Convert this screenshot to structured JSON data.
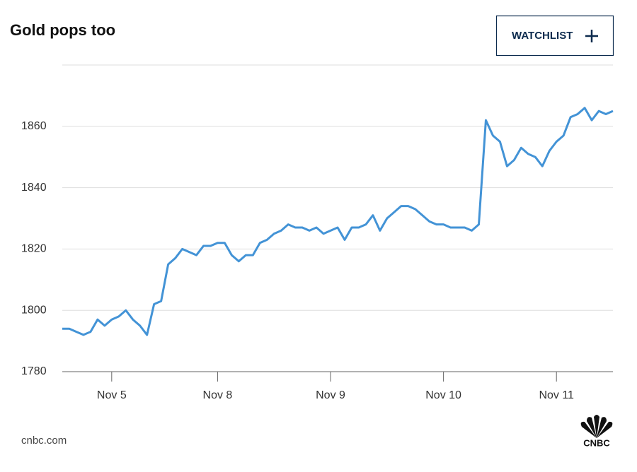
{
  "chart_data": {
    "type": "line",
    "title": "Gold pops too",
    "button": "WATCHLIST",
    "source": "cnbc.com",
    "logo": "CNBC",
    "categories": [
      null,
      null,
      null,
      null,
      null,
      null,
      null,
      "Nov 5",
      null,
      null,
      null,
      null,
      null,
      null,
      null,
      null,
      null,
      null,
      null,
      null,
      null,
      null,
      "Nov 8",
      null,
      null,
      null,
      null,
      null,
      null,
      null,
      null,
      null,
      null,
      null,
      null,
      null,
      null,
      null,
      "Nov 9",
      null,
      null,
      null,
      null,
      null,
      null,
      null,
      null,
      null,
      null,
      null,
      null,
      null,
      null,
      null,
      "Nov 10",
      null,
      null,
      null,
      null,
      null,
      null,
      null,
      null,
      null,
      null,
      null,
      null,
      null,
      null,
      null,
      "Nov 11",
      null,
      null,
      null,
      null,
      null,
      null,
      null,
      null
    ],
    "series": [
      {
        "color": "#4393d6",
        "values": [
          1794,
          1794,
          1793,
          1792,
          1793,
          1797,
          1795,
          1797,
          1798,
          1800,
          1797,
          1795,
          1792,
          1802,
          1803,
          1815,
          1817,
          1820,
          1819,
          1818,
          1821,
          1821,
          1822,
          1822,
          1818,
          1816,
          1818,
          1818,
          1822,
          1823,
          1825,
          1826,
          1828,
          1827,
          1827,
          1826,
          1827,
          1825,
          1826,
          1827,
          1823,
          1827,
          1827,
          1828,
          1831,
          1826,
          1830,
          1832,
          1834,
          1834,
          1833,
          1831,
          1829,
          1828,
          1828,
          1827,
          1827,
          1827,
          1826,
          1828,
          1862,
          1857,
          1855,
          1847,
          1849,
          1853,
          1851,
          1850,
          1847,
          1852,
          1855,
          1857,
          1863,
          1864,
          1866,
          1862,
          1865,
          1864,
          1865
        ]
      }
    ],
    "ylim": [
      1780,
      1880
    ],
    "yticks": [
      1780,
      1800,
      1820,
      1840,
      1860
    ],
    "grid": true
  }
}
